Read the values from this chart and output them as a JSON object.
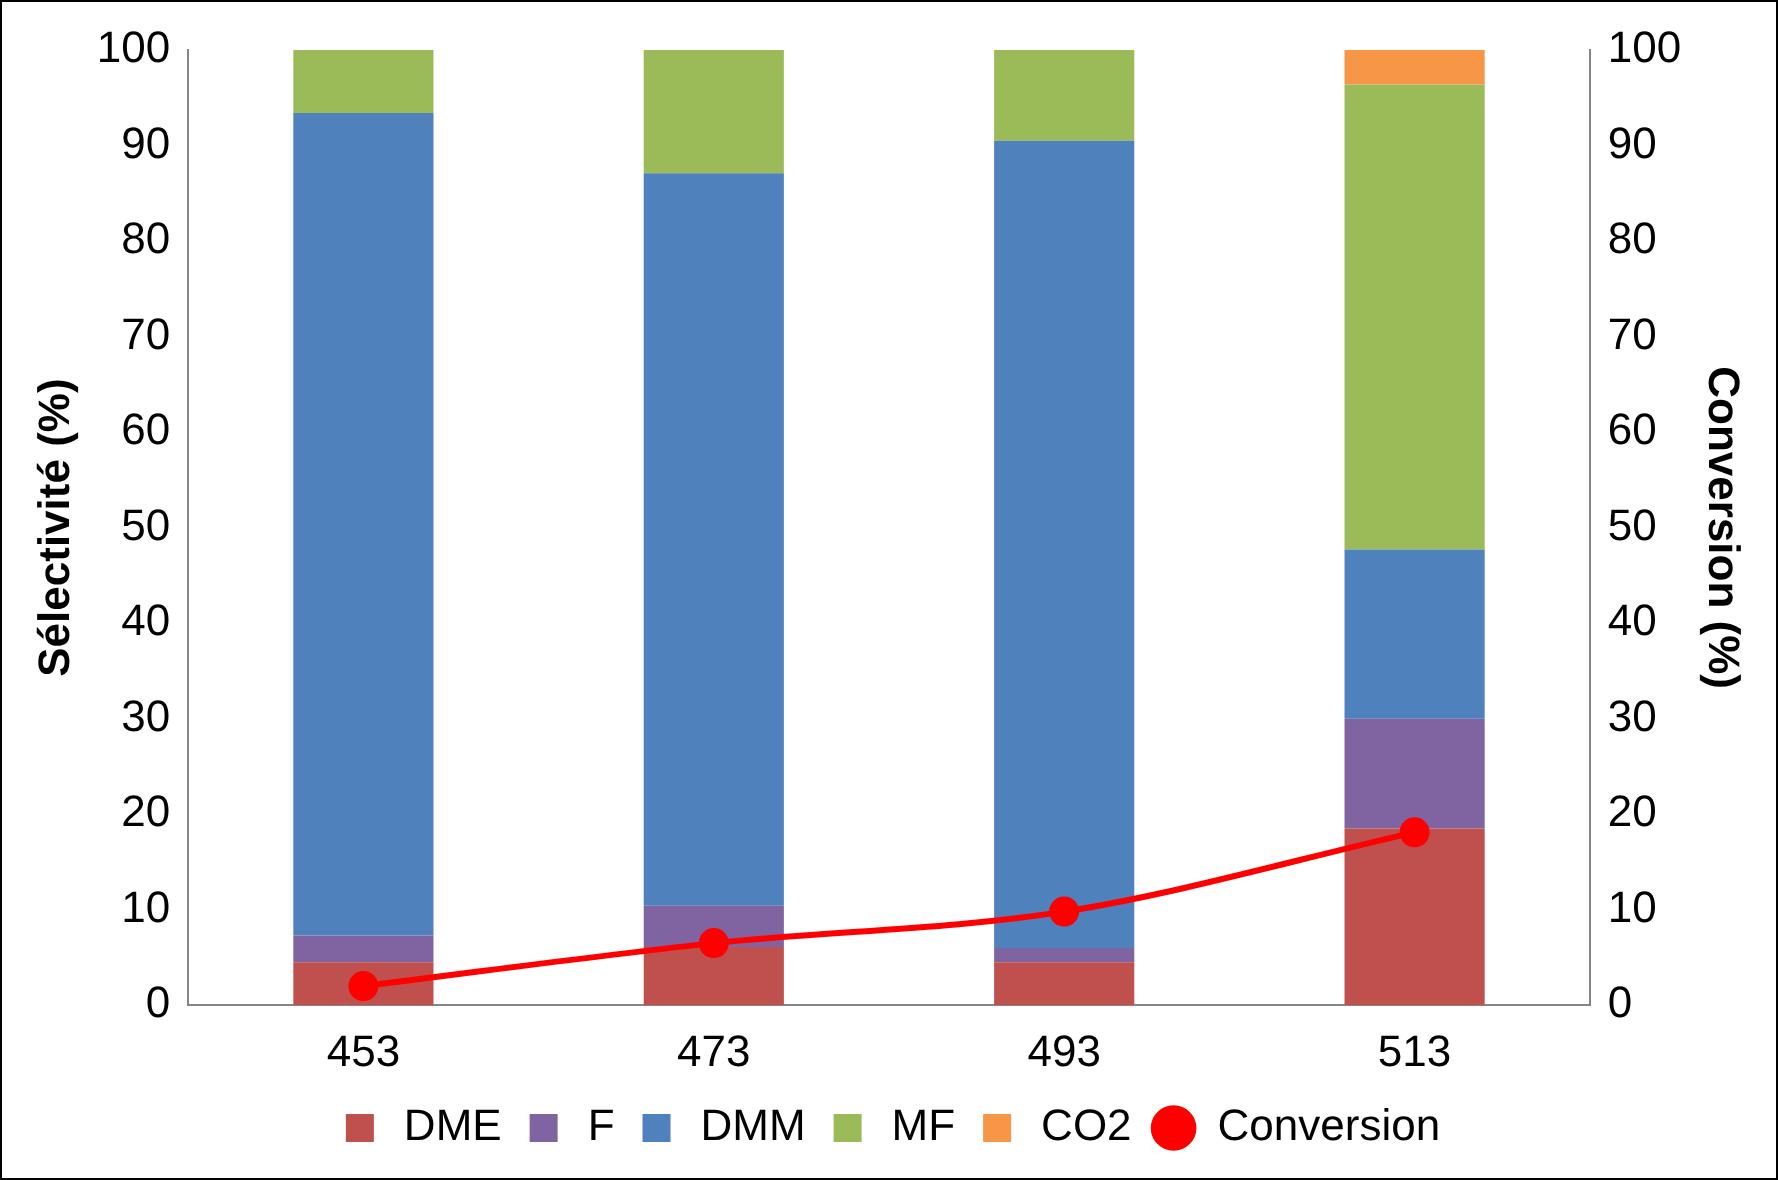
{
  "chart_data": {
    "type": "bar",
    "stacked": true,
    "ylabel": "Sélectivité (%)",
    "y2label": "Conversion (%)",
    "categories": [
      "453",
      "473",
      "493",
      "513"
    ],
    "series": [
      {
        "name": "DME",
        "color": "#c0504d",
        "values": [
          4.5,
          6.1,
          4.5,
          18.5
        ]
      },
      {
        "name": "F",
        "color": "#8064a2",
        "values": [
          2.8,
          4.3,
          1.5,
          11.5
        ]
      },
      {
        "name": "DMM",
        "color": "#4f81bd",
        "values": [
          86.1,
          76.7,
          84.5,
          17.7
        ]
      },
      {
        "name": "MF",
        "color": "#9bbb59",
        "values": [
          6.6,
          12.9,
          9.5,
          48.7
        ]
      },
      {
        "name": "CO2",
        "color": "#f79646",
        "values": [
          0,
          0,
          0,
          3.6
        ]
      },
      {
        "name": "Conversion",
        "type": "line",
        "axis": "y2",
        "color": "#ff0000",
        "values": [
          2.0,
          6.5,
          9.8,
          18.1
        ]
      }
    ],
    "ylim": [
      0,
      100
    ],
    "yticks": [
      0,
      10,
      20,
      30,
      40,
      50,
      60,
      70,
      80,
      90,
      100
    ],
    "y2lim": [
      0,
      100
    ],
    "y2ticks": [
      0,
      10,
      20,
      30,
      40,
      50,
      60,
      70,
      80,
      90,
      100
    ],
    "grid": false,
    "legend": "bottom",
    "marker": "circle",
    "line_style": "solid"
  }
}
